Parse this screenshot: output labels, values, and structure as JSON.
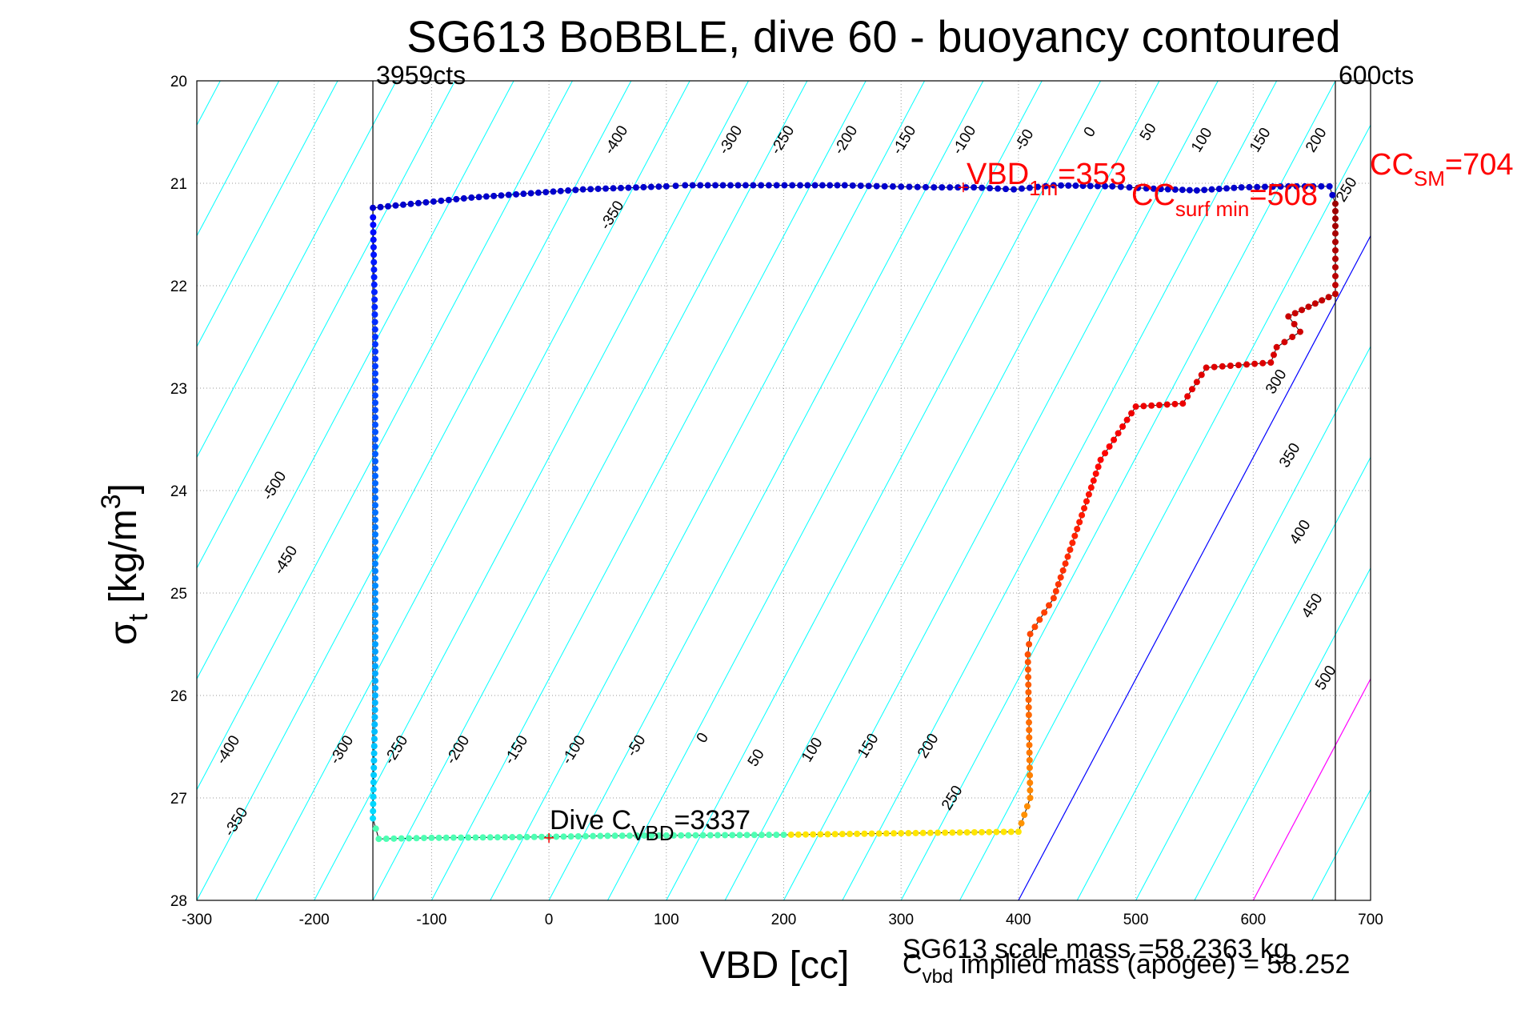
{
  "chart_data": {
    "type": "scatter",
    "title": "SG613 BoBBLE, dive 60 - buoyancy contoured",
    "xlabel": "VBD [cc]",
    "ylabel_main": "σ",
    "ylabel_sub": "t",
    "ylabel_unit": " [kg/m",
    "ylabel_sup": "3",
    "ylabel_close": "]",
    "xlim": [
      -300,
      700
    ],
    "ylim": [
      28,
      20
    ],
    "y_reversed": true,
    "grid": "dotted",
    "x_ticks": [
      -300,
      -200,
      -100,
      0,
      100,
      200,
      300,
      400,
      500,
      600,
      700
    ],
    "y_ticks": [
      20,
      21,
      22,
      23,
      24,
      25,
      26,
      27,
      28
    ],
    "colors": {
      "contour": "#00ffff",
      "zero_contour": "#0000ff",
      "magenta_contour": "#ff00ff",
      "annotation_red": "#ff0000",
      "upper_points": "#0000cc"
    },
    "vertical_lines": [
      {
        "x": -150,
        "label": "3959cts"
      },
      {
        "x": 670,
        "label": "600cts"
      }
    ],
    "contour_labels": {
      "upper": [
        "-400",
        "-350",
        "-300",
        "-250",
        "-200",
        "-150",
        "-100",
        "-50",
        "0",
        "50",
        "100",
        "150",
        "200",
        "250"
      ],
      "upper_right": [
        "300",
        "350",
        "400",
        "450",
        "500"
      ],
      "lower": [
        "-350",
        "-400",
        "-300",
        "-250",
        "-200",
        "-150",
        "-100",
        "-50",
        "0",
        "50",
        "100",
        "150",
        "200",
        "250"
      ],
      "left": [
        "-500",
        "-450"
      ]
    },
    "annotations": {
      "vbd1m_main": "VBD",
      "vbd1m_sub": "1m",
      "vbd1m_val": "=353",
      "ccsurf_main": "CC",
      "ccsurf_sub": "surf min",
      "ccsurf_val": "=508",
      "ccsm_main": "CC",
      "ccsm_sub": "SM",
      "ccsm_val": "=704",
      "dive_main": "Dive C",
      "dive_sub": "VBD",
      "dive_val": "=3337",
      "scale_mass": "SG613 scale mass =58.2363 kg",
      "implied_main": "C",
      "implied_sub": "vbd",
      "implied_rest": " implied mass (apogee) = 58.252"
    },
    "series": [
      {
        "color_scale": "jet",
        "x": [
          -150,
          -66,
          29,
          100,
          116,
          174,
          214,
          252,
          286,
          328,
          362,
          396,
          430,
          480,
          509,
          552,
          590,
          630,
          665,
          670,
          670,
          670,
          670,
          630,
          640,
          620,
          615,
          560,
          540,
          500,
          470,
          430,
          410,
          408,
          410,
          400,
          200,
          50,
          0,
          -100,
          -145,
          -150,
          -148,
          -148,
          -148,
          -150
        ],
        "y": [
          21.24,
          21.14,
          21.06,
          21.03,
          21.02,
          21.02,
          21.02,
          21.02,
          21.03,
          21.04,
          21.04,
          21.06,
          21.02,
          21.03,
          21.05,
          21.07,
          21.04,
          21.03,
          21.03,
          21.2,
          21.49,
          21.82,
          22.08,
          22.3,
          22.45,
          22.6,
          22.75,
          22.8,
          23.15,
          23.18,
          23.7,
          25.05,
          25.4,
          25.6,
          27.0,
          27.33,
          27.36,
          27.37,
          27.38,
          27.39,
          27.4,
          27.2,
          26.0,
          24.0,
          22.5,
          21.26
        ]
      }
    ]
  }
}
